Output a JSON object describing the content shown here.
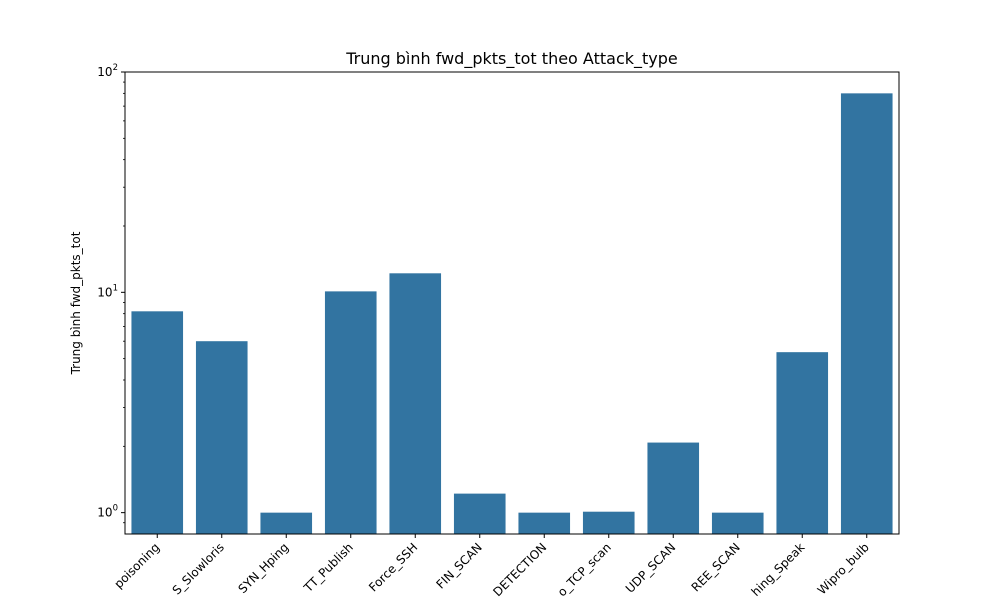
{
  "chart_data": {
    "type": "bar",
    "title": "Trung bình fwd_pkts_tot theo Attack_type",
    "xlabel": "",
    "ylabel": "Trung bình fwd_pkts_tot",
    "yscale": "log",
    "ylim": [
      0.8,
      100
    ],
    "yticks": [
      {
        "value": 1,
        "base": "10",
        "exp": "0"
      },
      {
        "value": 10,
        "base": "10",
        "exp": "1"
      },
      {
        "value": 100,
        "base": "10",
        "exp": "2"
      }
    ],
    "categories": [
      "poisoning",
      "S_Slowloris",
      "SYN_Hping",
      "TT_Publish",
      "Force_SSH",
      "FIN_SCAN",
      "DETECTION",
      "o_TCP_scan",
      "UDP_SCAN",
      "REE_SCAN",
      "hing_Speak",
      "Wipro_bulb"
    ],
    "values": [
      8.2,
      6.0,
      1.0,
      10.1,
      12.2,
      1.22,
      1.0,
      1.01,
      2.08,
      1.0,
      5.35,
      80.0
    ],
    "bar_color": "#3274a1",
    "grid": false,
    "legend": "none"
  }
}
